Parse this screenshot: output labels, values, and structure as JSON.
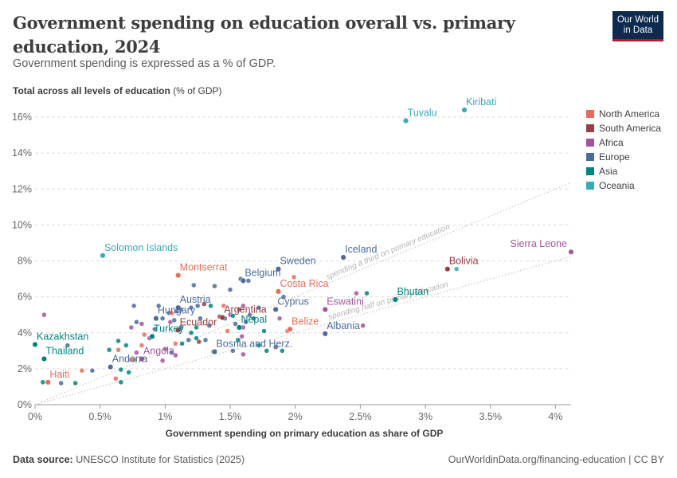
{
  "header": {
    "title": "Government spending on education overall vs. primary education, 2024",
    "subtitle": "Government spending is expressed as a % of GDP.",
    "logo_line1": "Our World",
    "logo_line2": "in Data"
  },
  "footer": {
    "source_label": "Data source:",
    "source_text": "UNESCO Institute for Statistics (2025)",
    "url": "OurWorldinData.org/financing-education | CC BY"
  },
  "chart_data": {
    "type": "scatter",
    "ylabel_bold": "Total across all levels of education",
    "ylabel_unit": "(% of GDP)",
    "xlabel": "Government spending on primary education as share of GDP",
    "xlim": [
      0,
      4.12
    ],
    "ylim": [
      0,
      16.8
    ],
    "x_ticks": [
      0,
      0.5,
      1,
      1.5,
      2,
      2.5,
      3,
      3.5,
      4
    ],
    "x_tick_labels": [
      "0%",
      "0.5%",
      "1%",
      "1.5%",
      "2%",
      "2.5%",
      "3%",
      "3.5%",
      "4%"
    ],
    "y_ticks": [
      0,
      2,
      4,
      6,
      8,
      10,
      12,
      14,
      16
    ],
    "y_tick_labels": [
      "0%",
      "2%",
      "4%",
      "6%",
      "8%",
      "10%",
      "12%",
      "14%",
      "16%"
    ],
    "grid": "horizontal dashed",
    "legend_position": "right",
    "colors": {
      "North America": "#e56e5a",
      "South America": "#9a3c43",
      "Africa": "#a2559c",
      "Europe": "#4c6a9c",
      "Asia": "#00847e",
      "Oceania": "#38aaba"
    },
    "regions": [
      "North America",
      "South America",
      "Africa",
      "Europe",
      "Asia",
      "Oceania"
    ],
    "reference_lines": [
      {
        "label": "spending a third on primary education",
        "slope": 3
      },
      {
        "label": "spending half on primary education",
        "slope": 2
      }
    ],
    "labeled_points": [
      {
        "name": "Tuvalu",
        "x": 2.85,
        "y": 15.8,
        "region": "Oceania"
      },
      {
        "name": "Kiribati",
        "x": 3.3,
        "y": 16.4,
        "region": "Oceania"
      },
      {
        "name": "Solomon Islands",
        "x": 0.52,
        "y": 8.3,
        "region": "Oceania"
      },
      {
        "name": "Iceland",
        "x": 2.37,
        "y": 8.2,
        "region": "Europe"
      },
      {
        "name": "Sierra Leone",
        "x": 4.12,
        "y": 8.5,
        "region": "Africa"
      },
      {
        "name": "Bolivia",
        "x": 3.17,
        "y": 7.55,
        "region": "South America"
      },
      {
        "name": "Montserrat",
        "x": 1.1,
        "y": 7.2,
        "region": "North America"
      },
      {
        "name": "Sweden",
        "x": 1.87,
        "y": 7.55,
        "region": "Europe"
      },
      {
        "name": "Belgium",
        "x": 1.6,
        "y": 6.9,
        "region": "Europe"
      },
      {
        "name": "Costa Rica",
        "x": 1.87,
        "y": 6.3,
        "region": "North America"
      },
      {
        "name": "Bhutan",
        "x": 2.77,
        "y": 5.85,
        "region": "Asia"
      },
      {
        "name": "Austria",
        "x": 1.1,
        "y": 5.4,
        "region": "Europe"
      },
      {
        "name": "Cyprus",
        "x": 1.85,
        "y": 5.3,
        "region": "Europe"
      },
      {
        "name": "Eswatini",
        "x": 2.23,
        "y": 5.3,
        "region": "Africa"
      },
      {
        "name": "Hungary",
        "x": 0.93,
        "y": 4.8,
        "region": "Europe"
      },
      {
        "name": "Argentina",
        "x": 1.44,
        "y": 4.85,
        "region": "South America"
      },
      {
        "name": "Belize",
        "x": 1.96,
        "y": 4.2,
        "region": "North America"
      },
      {
        "name": "Nepal",
        "x": 1.57,
        "y": 4.3,
        "region": "Asia"
      },
      {
        "name": "Albania",
        "x": 2.23,
        "y": 3.95,
        "region": "Europe"
      },
      {
        "name": "Ecuador",
        "x": 1.1,
        "y": 4.15,
        "region": "South America"
      },
      {
        "name": "Kazakhstan",
        "x": 0.0,
        "y": 3.35,
        "region": "Asia"
      },
      {
        "name": "Turkey",
        "x": 0.9,
        "y": 3.8,
        "region": "Asia"
      },
      {
        "name": "Bosnia and Herz.",
        "x": 1.38,
        "y": 2.95,
        "region": "Europe"
      },
      {
        "name": "Thailand",
        "x": 0.07,
        "y": 2.55,
        "region": "Asia"
      },
      {
        "name": "Andorra",
        "x": 0.58,
        "y": 2.1,
        "region": "Europe"
      },
      {
        "name": "Angola",
        "x": 0.82,
        "y": 2.55,
        "region": "Africa"
      },
      {
        "name": "Haiti",
        "x": 0.1,
        "y": 1.25,
        "region": "North America"
      }
    ],
    "other_points": [
      [
        0.07,
        5.0,
        "Africa"
      ],
      [
        0.2,
        1.2,
        "Europe"
      ],
      [
        0.25,
        3.3,
        "Europe"
      ],
      [
        0.36,
        1.9,
        "North America"
      ],
      [
        0.44,
        1.9,
        "Europe"
      ],
      [
        0.31,
        1.2,
        "Asia"
      ],
      [
        0.06,
        1.25,
        "Asia"
      ],
      [
        0.57,
        3.05,
        "Asia"
      ],
      [
        0.64,
        3.05,
        "North America"
      ],
      [
        0.64,
        3.55,
        "Asia"
      ],
      [
        0.7,
        3.3,
        "Asia"
      ],
      [
        0.74,
        2.5,
        "North America"
      ],
      [
        0.72,
        1.8,
        "Asia"
      ],
      [
        0.66,
        1.25,
        "Asia"
      ],
      [
        0.62,
        1.45,
        "North America"
      ],
      [
        0.66,
        1.95,
        "Asia"
      ],
      [
        0.76,
        2.5,
        "North America"
      ],
      [
        0.78,
        2.9,
        "Africa"
      ],
      [
        0.82,
        3.3,
        "North America"
      ],
      [
        0.88,
        3.7,
        "Africa"
      ],
      [
        0.84,
        3.9,
        "North America"
      ],
      [
        0.74,
        4.3,
        "Africa"
      ],
      [
        0.78,
        4.6,
        "Europe"
      ],
      [
        0.82,
        4.5,
        "Africa"
      ],
      [
        0.76,
        5.5,
        "Europe"
      ],
      [
        0.92,
        4.2,
        "Europe"
      ],
      [
        0.95,
        5.5,
        "Europe"
      ],
      [
        0.98,
        4.8,
        "Europe"
      ],
      [
        1.03,
        5.1,
        "Europe"
      ],
      [
        1.04,
        4.6,
        "Africa"
      ],
      [
        1.07,
        4.7,
        "Europe"
      ],
      [
        1.05,
        5.1,
        "North America"
      ],
      [
        1.09,
        5.2,
        "Europe"
      ],
      [
        1.12,
        5.3,
        "Europe"
      ],
      [
        1.12,
        4.3,
        "Europe"
      ],
      [
        1.13,
        3.4,
        "Asia"
      ],
      [
        1.08,
        3.4,
        "North America"
      ],
      [
        1.0,
        3.1,
        "Africa"
      ],
      [
        0.98,
        2.45,
        "Africa"
      ],
      [
        1.08,
        2.75,
        "Africa"
      ],
      [
        1.05,
        2.9,
        "Europe"
      ],
      [
        1.18,
        3.6,
        "Europe"
      ],
      [
        1.2,
        4.0,
        "Asia"
      ],
      [
        1.2,
        5.4,
        "Europe"
      ],
      [
        1.25,
        5.5,
        "Europe"
      ],
      [
        1.3,
        5.6,
        "South America"
      ],
      [
        1.35,
        5.5,
        "Asia"
      ],
      [
        1.27,
        4.8,
        "Europe"
      ],
      [
        1.34,
        4.4,
        "Europe"
      ],
      [
        1.24,
        3.7,
        "Asia"
      ],
      [
        1.26,
        3.5,
        "South America"
      ],
      [
        1.31,
        3.6,
        "Europe"
      ],
      [
        1.37,
        2.95,
        "North America"
      ],
      [
        1.42,
        4.9,
        "South America"
      ],
      [
        1.46,
        4.8,
        "Europe"
      ],
      [
        1.48,
        4.1,
        "North America"
      ],
      [
        1.5,
        5.0,
        "Africa"
      ],
      [
        1.52,
        4.95,
        "Asia"
      ],
      [
        1.54,
        4.5,
        "Europe"
      ],
      [
        1.56,
        3.6,
        "Asia"
      ],
      [
        1.59,
        3.8,
        "Africa"
      ],
      [
        1.6,
        4.3,
        "Africa"
      ],
      [
        1.62,
        4.6,
        "Europe"
      ],
      [
        1.6,
        5.5,
        "Africa"
      ],
      [
        1.57,
        5.3,
        "Europe"
      ],
      [
        1.65,
        5.0,
        "Europe"
      ],
      [
        1.68,
        4.8,
        "Asia"
      ],
      [
        1.72,
        5.4,
        "Europe"
      ],
      [
        1.76,
        4.1,
        "Asia"
      ],
      [
        1.78,
        3.0,
        "Asia"
      ],
      [
        1.6,
        2.8,
        "Africa"
      ],
      [
        1.72,
        3.3,
        "Asia"
      ],
      [
        1.88,
        4.8,
        "Africa"
      ],
      [
        1.91,
        6.0,
        "Europe"
      ],
      [
        1.94,
        4.1,
        "North America"
      ],
      [
        1.99,
        7.1,
        "North America"
      ],
      [
        1.9,
        3.0,
        "Asia"
      ],
      [
        1.85,
        3.2,
        "Europe"
      ],
      [
        1.22,
        6.65,
        "Europe"
      ],
      [
        1.38,
        6.6,
        "Europe"
      ],
      [
        1.5,
        6.4,
        "Europe"
      ],
      [
        1.58,
        7.0,
        "Europe"
      ],
      [
        1.64,
        6.9,
        "Europe"
      ],
      [
        2.47,
        6.2,
        "Africa"
      ],
      [
        2.55,
        6.2,
        "Asia"
      ],
      [
        2.52,
        4.4,
        "Africa"
      ],
      [
        3.24,
        7.55,
        "Oceania"
      ],
      [
        1.24,
        4.3,
        "Asia"
      ],
      [
        1.45,
        5.5,
        "North America"
      ],
      [
        1.52,
        3.0,
        "Europe"
      ]
    ]
  }
}
